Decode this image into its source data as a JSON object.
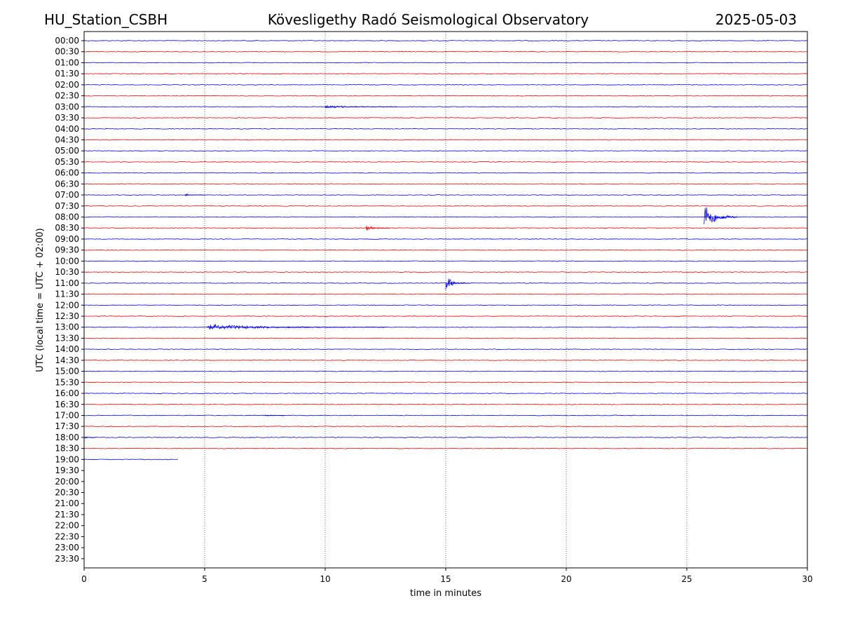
{
  "header": {
    "station": "HU_Station_CSBH",
    "observatory": "Kövesligethy Radó Seismological Observatory",
    "date": "2025-05-03"
  },
  "chart_data": {
    "type": "line",
    "title": "Kövesligethy Radó Seismological Observatory",
    "xlabel": "time in minutes",
    "ylabel": "UTC (local time = UTC + 02:00)",
    "xlim": [
      0,
      30
    ],
    "x_ticks": [
      "0",
      "5",
      "10",
      "15",
      "20",
      "25",
      "30"
    ],
    "x_tick_values": [
      0,
      5,
      10,
      15,
      20,
      25,
      30
    ],
    "grid": "vertical dotted lines at x ticks",
    "row_labels": [
      "00:00",
      "00:30",
      "01:00",
      "01:30",
      "02:00",
      "02:30",
      "03:00",
      "03:30",
      "04:00",
      "04:30",
      "05:00",
      "05:30",
      "06:00",
      "06:30",
      "07:00",
      "07:30",
      "08:00",
      "08:30",
      "09:00",
      "09:30",
      "10:00",
      "10:30",
      "11:00",
      "11:30",
      "12:00",
      "12:30",
      "13:00",
      "13:30",
      "14:00",
      "14:30",
      "15:00",
      "15:30",
      "16:00",
      "16:30",
      "17:00",
      "17:30",
      "18:00",
      "18:30",
      "19:00",
      "19:30",
      "20:00",
      "20:30",
      "21:00",
      "21:30",
      "22:00",
      "22:30",
      "23:00",
      "23:30"
    ],
    "colors": {
      "even_rows": "#0000ff",
      "odd_rows": "#ff0000"
    },
    "traces_recorded_until": {
      "row": "19:00",
      "minute": 3.9
    },
    "events": [
      {
        "row": "03:00",
        "start": 10.0,
        "end": 13.0,
        "amplitude": 0.18
      },
      {
        "row": "07:00",
        "start": 4.2,
        "end": 5.0,
        "amplitude": 0.12
      },
      {
        "row": "08:00",
        "start": 25.7,
        "end": 27.1,
        "amplitude": 1.6
      },
      {
        "row": "08:30",
        "start": 11.7,
        "end": 12.7,
        "amplitude": 0.35
      },
      {
        "row": "11:00",
        "start": 15.0,
        "end": 16.0,
        "amplitude": 0.9
      },
      {
        "row": "13:00",
        "start": 5.1,
        "end": 12.5,
        "amplitude": 0.3
      },
      {
        "row": "17:00",
        "start": 7.5,
        "end": 8.3,
        "amplitude": 0.1
      },
      {
        "row": "18:00",
        "start": 0.0,
        "end": 0.5,
        "amplitude": 0.1
      }
    ]
  }
}
